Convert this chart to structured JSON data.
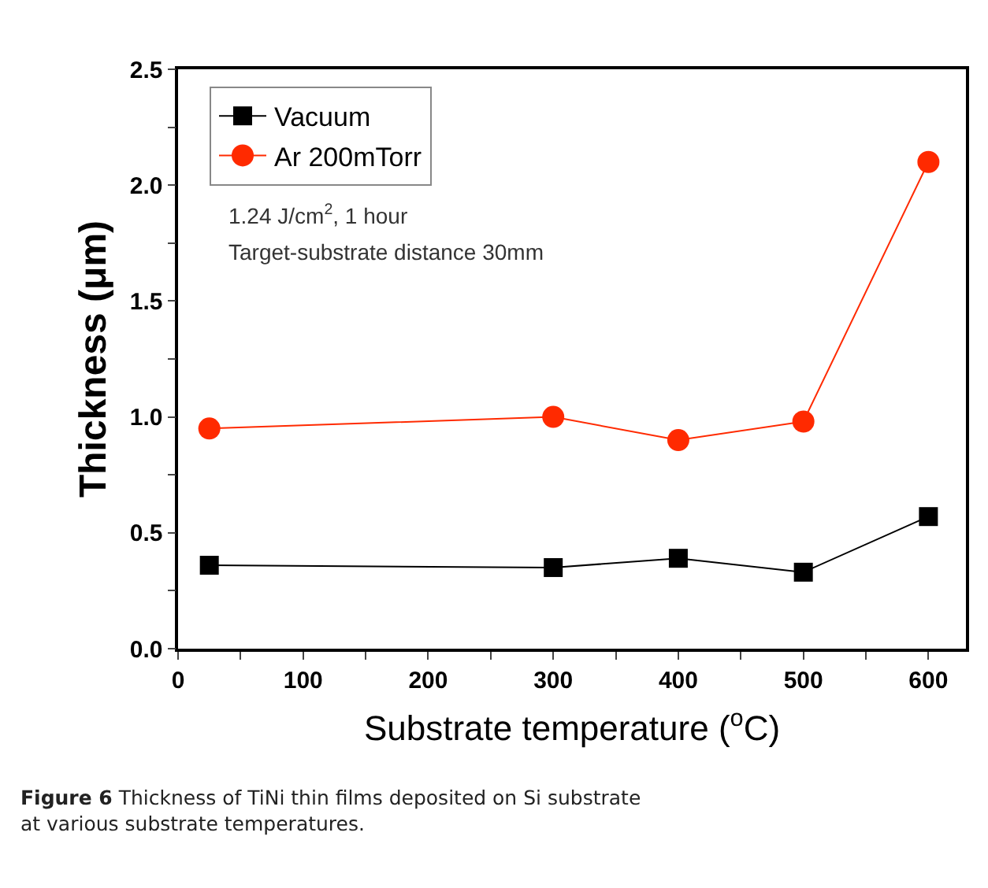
{
  "chart_data": {
    "type": "line",
    "xlabel": "Substrate temperature ($^{o}$C)",
    "ylabel": "Thickness (μm)",
    "x": [
      25,
      300,
      400,
      500,
      600
    ],
    "series": [
      {
        "name": "Vacuum",
        "color": "#000000",
        "marker": "square",
        "values": [
          0.36,
          0.35,
          0.39,
          0.33,
          0.57
        ]
      },
      {
        "name": "Ar 200mTorr",
        "color": "#ff2a00",
        "marker": "circle",
        "values": [
          0.95,
          1.0,
          0.9,
          0.98,
          2.1
        ]
      }
    ],
    "xlim": [
      0,
      630
    ],
    "xticks": [
      0,
      {
        "value": 50,
        "label": null
      },
      100,
      {
        "value": 150,
        "label": null
      },
      200,
      {
        "value": 250,
        "label": null
      },
      300,
      {
        "value": 350,
        "label": null
      },
      400,
      {
        "value": 450,
        "label": null
      },
      500,
      {
        "value": 550,
        "label": null
      },
      600
    ],
    "ylim": [
      0,
      2.5
    ],
    "yticks": [
      {
        "value": 0,
        "label": "0.0"
      },
      {
        "value": 0.25,
        "label": null
      },
      0.5,
      {
        "value": 0.75,
        "label": null
      },
      {
        "value": 1,
        "label": "1.0"
      },
      {
        "value": 1.25,
        "label": null
      },
      1.5,
      {
        "value": 1.75,
        "label": null
      },
      {
        "value": 2,
        "label": "2.0"
      },
      {
        "value": 2.25,
        "label": null
      },
      2.5
    ],
    "annotations": [
      "1.24 J/cm$^{2}$, 1 hour",
      "Target-substrate distance 30mm",
      "Figure 6 Thickness of TiNi thin films deposited on Si substrate at various substrate temperatures."
    ],
    "legend": "top left",
    "line_style": "solid"
  }
}
